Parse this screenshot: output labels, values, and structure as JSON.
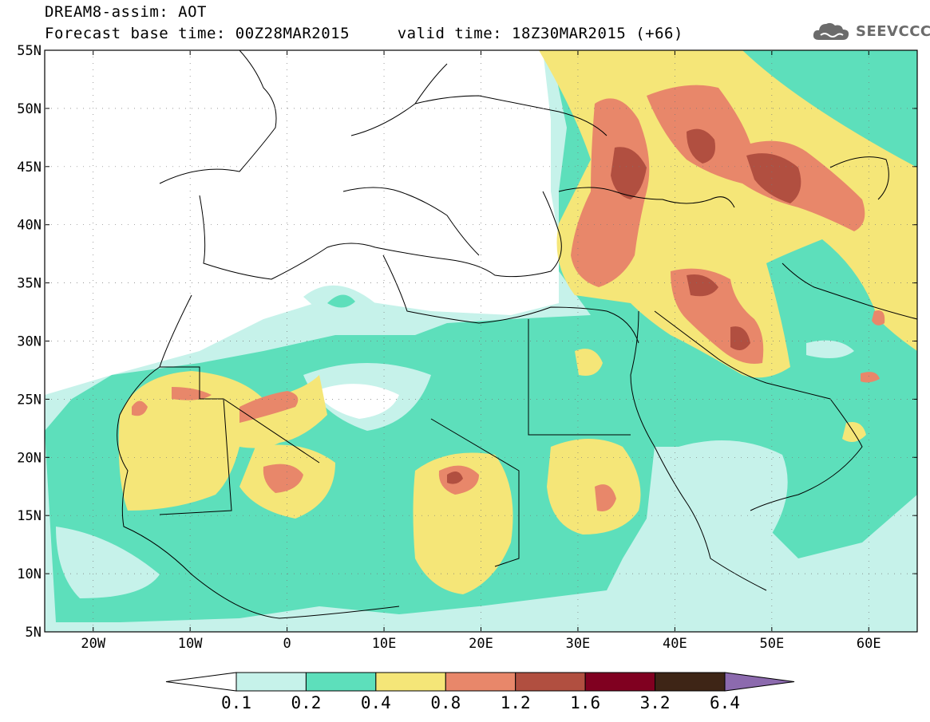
{
  "header": {
    "line1": "DREAM8-assim: AOT",
    "line2": "Forecast base time: 00Z28MAR2015     valid time: 18Z30MAR2015 (+66)"
  },
  "logo": {
    "text": "SEEVCCC",
    "icon": "cloud-icon"
  },
  "map": {
    "lon_range": [
      -25,
      65
    ],
    "lat_range": [
      5,
      55
    ],
    "lat_ticks": [
      "55N",
      "50N",
      "45N",
      "40N",
      "35N",
      "30N",
      "25N",
      "20N",
      "15N",
      "10N",
      "5N"
    ],
    "lon_ticks": [
      "20W",
      "10W",
      "0",
      "10E",
      "20E",
      "30E",
      "40E",
      "50E",
      "60E"
    ]
  },
  "colorbar": {
    "labels": [
      "0.1",
      "0.2",
      "0.4",
      "0.8",
      "1.2",
      "1.6",
      "3.2",
      "6.4"
    ],
    "colors": [
      "#ffffff",
      "#c6f2ea",
      "#5ddfbb",
      "#f5e678",
      "#e8876a",
      "#b14f40",
      "#800020",
      "#3e2516",
      "#8c6aae"
    ]
  }
}
